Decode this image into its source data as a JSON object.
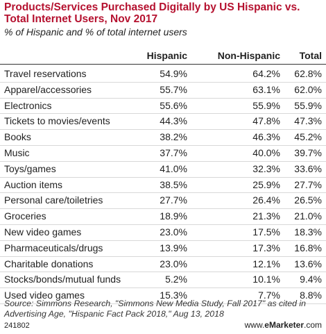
{
  "title": "Products/Services Purchased Digitally by US Hispanic vs. Total Internet Users, Nov 2017",
  "subtitle": "% of Hispanic and % of total internet users",
  "chart_data": {
    "type": "table",
    "title": "Products/Services Purchased Digitally by US Hispanic vs. Total Internet Users, Nov 2017",
    "subtitle": "% of Hispanic and % of total internet users",
    "columns": [
      "",
      "Hispanic",
      "Non-Hispanic",
      "Total"
    ],
    "rows": [
      {
        "label": "Travel reservations",
        "hispanic": "54.9%",
        "non_hispanic": "64.2%",
        "total": "62.8%"
      },
      {
        "label": "Apparel/accessories",
        "hispanic": "55.7%",
        "non_hispanic": "63.1%",
        "total": "62.0%"
      },
      {
        "label": "Electronics",
        "hispanic": "55.6%",
        "non_hispanic": "55.9%",
        "total": "55.9%"
      },
      {
        "label": "Tickets to movies/events",
        "hispanic": "44.3%",
        "non_hispanic": "47.8%",
        "total": "47.3%"
      },
      {
        "label": "Books",
        "hispanic": "38.2%",
        "non_hispanic": "46.3%",
        "total": "45.2%"
      },
      {
        "label": "Music",
        "hispanic": "37.7%",
        "non_hispanic": "40.0%",
        "total": "39.7%"
      },
      {
        "label": "Toys/games",
        "hispanic": "41.0%",
        "non_hispanic": "32.3%",
        "total": "33.6%"
      },
      {
        "label": "Auction items",
        "hispanic": "38.5%",
        "non_hispanic": "25.9%",
        "total": "27.7%"
      },
      {
        "label": "Personal care/toiletries",
        "hispanic": "27.7%",
        "non_hispanic": "26.4%",
        "total": "26.5%"
      },
      {
        "label": "Groceries",
        "hispanic": "18.9%",
        "non_hispanic": "21.3%",
        "total": "21.0%"
      },
      {
        "label": "New video games",
        "hispanic": "23.0%",
        "non_hispanic": "17.5%",
        "total": "18.3%"
      },
      {
        "label": "Pharmaceuticals/drugs",
        "hispanic": "13.9%",
        "non_hispanic": "17.3%",
        "total": "16.8%"
      },
      {
        "label": "Charitable donations",
        "hispanic": "23.0%",
        "non_hispanic": "12.1%",
        "total": "13.6%"
      },
      {
        "label": "Stocks/bonds/mutual funds",
        "hispanic": "5.2%",
        "non_hispanic": "10.1%",
        "total": "9.4%"
      },
      {
        "label": "Used video games",
        "hispanic": "15.3%",
        "non_hispanic": "7.7%",
        "total": "8.8%"
      }
    ]
  },
  "source": "Source: Simmons Research, \"Simmons New Media Study, Fall 2017\" as cited in Advertising Age, \"Hispanic Fact Pack 2018,\" Aug 13, 2018",
  "footer": {
    "id": "241802",
    "brand_prefix": "www.",
    "brand_name": "eMarketer",
    "brand_suffix": ".com"
  },
  "colors": {
    "title": "#b5112f"
  }
}
